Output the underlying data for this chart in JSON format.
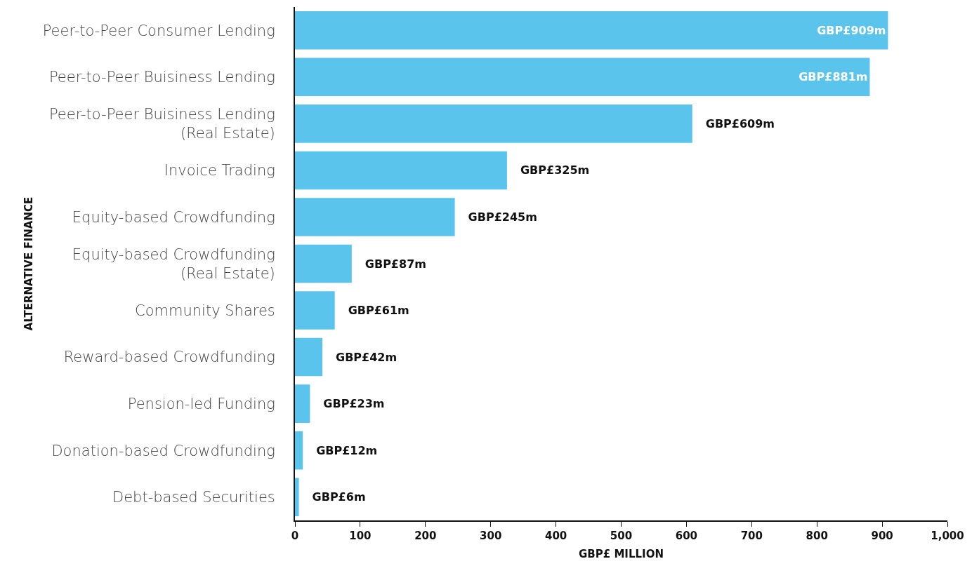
{
  "chart_data": {
    "type": "bar",
    "orientation": "horizontal",
    "xlabel": "GBP£ MILLION",
    "ylabel": "ALTERNATIVE FINANCE",
    "categories": [
      "Peer-to-Peer Consumer Lending",
      "Peer-to-Peer Buisiness Lending",
      "Peer-to-Peer Buisiness Lending\n(Real Estate)",
      "Invoice Trading",
      "Equity-based Crowdfunding",
      "Equity-based Crowdfunding\n(Real Estate)",
      "Community Shares",
      "Reward-based Crowdfunding",
      "Pension-led Funding",
      "Donation-based Crowdfunding",
      "Debt-based Securities"
    ],
    "values": [
      909,
      881,
      609,
      325,
      245,
      87,
      61,
      42,
      23,
      12,
      6
    ],
    "value_labels": [
      "GBP£909m",
      "GBP£881m",
      "GBP£609m",
      "GBP£325m",
      "GBP£245m",
      "GBP£87m",
      "GBP£61m",
      "GBP£42m",
      "GBP£23m",
      "GBP£12m",
      "GBP£6m"
    ],
    "color": "#5bc4ec",
    "xlim": [
      0,
      1000
    ],
    "xticks": [
      0,
      100,
      200,
      300,
      400,
      500,
      600,
      700,
      800,
      900,
      {
        "value": 1000,
        "label": "1,000"
      }
    ],
    "grid": false
  }
}
